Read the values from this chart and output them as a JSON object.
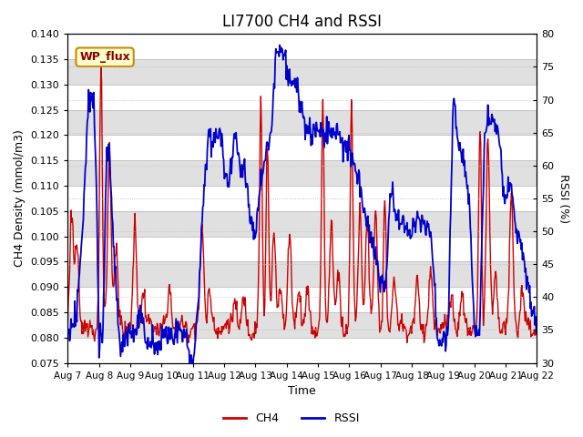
{
  "title": "LI7700 CH4 and RSSI",
  "xlabel": "Time",
  "ylabel_left": "CH4 Density (mmol/m3)",
  "ylabel_right": "RSSI (%)",
  "ylim_left": [
    0.075,
    0.14
  ],
  "ylim_right": [
    30,
    80
  ],
  "xlim": [
    0,
    360
  ],
  "xtick_labels": [
    "Aug 7",
    "Aug 8",
    "Aug 9",
    "Aug 10",
    "Aug 11",
    "Aug 12",
    "Aug 13",
    "Aug 14",
    "Aug 15",
    "Aug 16",
    "Aug 17",
    "Aug 18",
    "Aug 19",
    "Aug 20",
    "Aug 21",
    "Aug 22"
  ],
  "xtick_positions": [
    0,
    24,
    48,
    72,
    96,
    120,
    144,
    168,
    192,
    216,
    240,
    264,
    288,
    312,
    336,
    360
  ],
  "ch4_color": "#cc0000",
  "rssi_color": "#0000cc",
  "legend_ch4": "CH4",
  "legend_rssi": "RSSI",
  "annotation_text": "WP_flux",
  "annotation_bg": "#ffffcc",
  "annotation_border": "#cc8800",
  "grid_color": "#bbbbbb",
  "bg_band_color": "#e0e0e0",
  "title_fontsize": 12,
  "label_fontsize": 9,
  "tick_fontsize": 8,
  "linewidth_ch4": 1.0,
  "linewidth_rssi": 1.3
}
